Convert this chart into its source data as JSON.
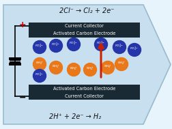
{
  "bg_arrow_color": "#c8dff0",
  "bg_arrow_edge": "#99bbcc",
  "electrode_dark": "#1a2a35",
  "electrode_text_color": "#ffffff",
  "top_eq": "2Cl⁻ → Cl₂ + 2e⁻",
  "bot_eq": "2H⁺ + 2e⁻ → H₂",
  "cc_label": "Current Collector",
  "ace_label": "Activated Carbon Electrode",
  "plus_color": "#cc0000",
  "minus_color": "#222222",
  "orange_color": "#e8781a",
  "blue_color": "#2535aa",
  "arrow_up_color": "#cc2200",
  "fig_bg": "#e8f4fc",
  "fig_w": 2.52,
  "fig_h": 1.89,
  "dpi": 100
}
